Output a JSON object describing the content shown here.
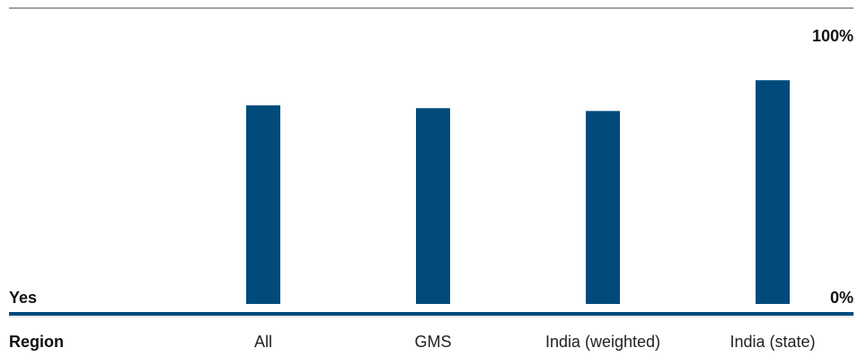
{
  "chart_data": {
    "type": "bar",
    "row_label": "Yes",
    "category_axis_label": "Region",
    "categories": [
      "All",
      "GMS",
      "India (weighted)",
      "India (state)"
    ],
    "values": [
      71,
      70,
      69,
      80
    ],
    "ylim": [
      0,
      100
    ],
    "y_top_label": "100%",
    "y_bottom_label": "0%",
    "grid": false,
    "colors": {
      "bar": "#004a7c",
      "baseline": "#004a7c",
      "top_rule": "#444444",
      "separator": "#cccccc"
    }
  }
}
